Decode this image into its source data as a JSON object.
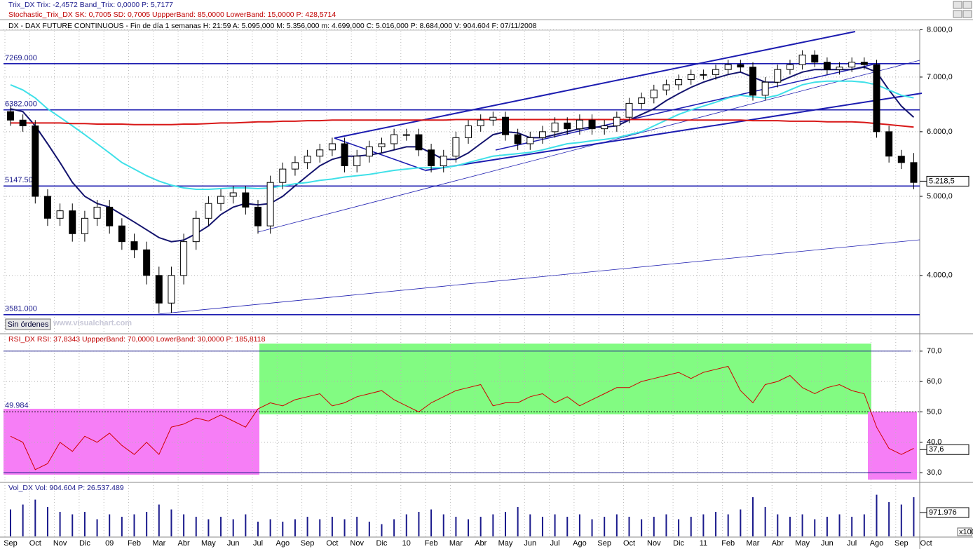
{
  "chart_data": [
    {
      "type": "candlestick",
      "title": "DX - DAX FUTURE CONTINUOUS - Fin de día 1 semanas H: 21:59 A: 5.095,000 M: 5.356,000 m: 4.699,000 C: 5.016,000 P: 8.684,000 V: 904.604 F: 07/11/2008",
      "indicators": [
        "Trix_DX Trix: -2,4572 Band_Trix: 0,0000 P: 5,7177",
        "Stochastic_Trix_DX SK: 0,7005 SD: 0,7005 UppperBand: 85,0000 LowerBand: 15,0000 P: 428,5714"
      ],
      "button": "Sin órdenes",
      "watermark": "www.visualchart.com",
      "log_scale": true,
      "grid": true,
      "ylim": [
        3400,
        7975
      ],
      "yticks": [
        {
          "value": 4000,
          "label": "4.000,0"
        },
        {
          "value": 5000,
          "label": "5.000,0"
        },
        {
          "value": 6000,
          "label": "6.000,0"
        },
        {
          "value": 7000,
          "label": "7.000,0"
        },
        {
          "value": 8000,
          "label": "8.000,0"
        }
      ],
      "open": [
        6350,
        6200,
        6100,
        5000,
        4700,
        4800,
        4500,
        4700,
        4850,
        4600,
        4400,
        4300,
        4000,
        3700,
        4000,
        4400,
        4700,
        4900,
        5000,
        5050,
        4850,
        4600,
        5200,
        5400,
        5500,
        5600,
        5700,
        5800,
        5450,
        5600,
        5750,
        5800,
        5950,
        5950,
        5700,
        5450,
        5600,
        5900,
        6100,
        6200,
        6250,
        5950,
        5800,
        5900,
        6000,
        6150,
        6050,
        6200,
        6050,
        6100,
        6250,
        6500,
        6600,
        6750,
        6850,
        6950,
        7050,
        7050,
        7150,
        7250,
        7200,
        6650,
        6900,
        7150,
        7250,
        7450,
        7300,
        7150,
        7200,
        7300,
        7250,
        6000,
        5600,
        5500
      ],
      "high": [
        6450,
        6300,
        6200,
        5100,
        4900,
        4900,
        4800,
        4950,
        4950,
        4700,
        4500,
        4400,
        4100,
        4100,
        4500,
        4800,
        5000,
        5100,
        5150,
        5150,
        4950,
        5300,
        5500,
        5600,
        5700,
        5800,
        5900,
        5900,
        5700,
        5850,
        5900,
        6050,
        6050,
        6050,
        5800,
        5700,
        6000,
        6200,
        6300,
        6350,
        6350,
        6050,
        6000,
        6100,
        6250,
        6250,
        6300,
        6300,
        6200,
        6350,
        6600,
        6700,
        6850,
        6950,
        7050,
        7150,
        7150,
        7250,
        7350,
        7350,
        7300,
        7000,
        7250,
        7350,
        7550,
        7550,
        7400,
        7300,
        7400,
        7400,
        7350,
        6100,
        5700,
        5650
      ],
      "low": [
        6100,
        6000,
        4900,
        4600,
        4600,
        4400,
        4400,
        4600,
        4500,
        4300,
        4200,
        3900,
        3600,
        3600,
        3900,
        4300,
        4600,
        4800,
        4900,
        4750,
        4500,
        4500,
        5100,
        5300,
        5400,
        5500,
        5600,
        5350,
        5350,
        5500,
        5650,
        5700,
        5850,
        5600,
        5350,
        5350,
        5500,
        5800,
        6000,
        6100,
        5850,
        5700,
        5700,
        5800,
        5900,
        5950,
        5950,
        5950,
        5950,
        6000,
        6150,
        6400,
        6500,
        6650,
        6750,
        6850,
        6950,
        6950,
        7050,
        7100,
        6550,
        6550,
        6800,
        7050,
        7150,
        7200,
        7050,
        7050,
        7100,
        7150,
        5900,
        5500,
        5400,
        5100
      ],
      "close": [
        6200,
        6100,
        5000,
        4700,
        4800,
        4500,
        4700,
        4850,
        4600,
        4400,
        4300,
        4000,
        3700,
        4000,
        4400,
        4700,
        4900,
        5000,
        5050,
        4850,
        4600,
        5200,
        5400,
        5500,
        5600,
        5700,
        5800,
        5450,
        5600,
        5750,
        5800,
        5950,
        5950,
        5700,
        5450,
        5600,
        5900,
        6100,
        6200,
        6250,
        5950,
        5800,
        5900,
        6000,
        6150,
        6050,
        6200,
        6050,
        6100,
        6250,
        6500,
        6600,
        6750,
        6850,
        6950,
        7050,
        7050,
        7150,
        7250,
        7200,
        6650,
        6900,
        7150,
        7250,
        7450,
        7300,
        7150,
        7200,
        7300,
        7250,
        6000,
        5600,
        5500,
        5200
      ],
      "series": [
        {
          "color": "#14146e",
          "values": [
            6400,
            6350,
            6100,
            5800,
            5500,
            5200,
            5000,
            4900,
            4850,
            4750,
            4650,
            4550,
            4450,
            4400,
            4420,
            4500,
            4600,
            4750,
            4850,
            4900,
            4880,
            4900,
            5000,
            5150,
            5300,
            5450,
            5550,
            5600,
            5600,
            5620,
            5650,
            5700,
            5750,
            5750,
            5650,
            5550,
            5550,
            5650,
            5800,
            5950,
            6000,
            5980,
            5900,
            5900,
            5950,
            6000,
            6050,
            6080,
            6080,
            6100,
            6200,
            6300,
            6400,
            6550,
            6680,
            6800,
            6900,
            6980,
            7050,
            7100,
            7000,
            6900,
            6900,
            7000,
            7100,
            7150,
            7150,
            7150,
            7150,
            7200,
            7100,
            6750,
            6450,
            6250
          ]
        },
        {
          "color": "#3fe0e8",
          "values": [
            6850,
            6750,
            6600,
            6400,
            6250,
            6100,
            5950,
            5800,
            5650,
            5500,
            5400,
            5300,
            5220,
            5160,
            5120,
            5100,
            5100,
            5110,
            5120,
            5120,
            5110,
            5120,
            5150,
            5180,
            5200,
            5230,
            5250,
            5280,
            5300,
            5320,
            5350,
            5380,
            5400,
            5420,
            5420,
            5420,
            5450,
            5500,
            5550,
            5600,
            5620,
            5640,
            5660,
            5700,
            5750,
            5800,
            5820,
            5850,
            5870,
            5900,
            5950,
            6000,
            6100,
            6200,
            6300,
            6380,
            6450,
            6520,
            6600,
            6650,
            6620,
            6600,
            6650,
            6750,
            6850,
            6900,
            6920,
            6920,
            6920,
            6900,
            6850,
            6750,
            6650,
            6600
          ]
        },
        {
          "color": "#d81818",
          "values": [
            6150,
            6150,
            6150,
            6150,
            6150,
            6140,
            6140,
            6130,
            6130,
            6130,
            6120,
            6120,
            6120,
            6120,
            6130,
            6130,
            6140,
            6150,
            6150,
            6160,
            6170,
            6170,
            6180,
            6180,
            6190,
            6190,
            6200,
            6200,
            6200,
            6200,
            6200,
            6200,
            6200,
            6200,
            6200,
            6200,
            6210,
            6210,
            6210,
            6210,
            6210,
            6210,
            6210,
            6210,
            6210,
            6210,
            6210,
            6210,
            6210,
            6210,
            6210,
            6210,
            6210,
            6210,
            6200,
            6200,
            6200,
            6200,
            6200,
            6200,
            6190,
            6190,
            6190,
            6180,
            6180,
            6180,
            6170,
            6170,
            6170,
            6160,
            6140,
            6120,
            6100,
            6080
          ]
        }
      ],
      "levels": [
        {
          "value": 7269,
          "label": "7269.000"
        },
        {
          "value": 6382,
          "label": "6382.000"
        },
        {
          "value": 5147.5,
          "label": "5147.500"
        },
        {
          "value": 3581,
          "label": "3581.000"
        }
      ],
      "last": {
        "value": 5218.5,
        "label": "5.218,5"
      }
    },
    {
      "type": "line",
      "title": "RSI_DX RSI: 37,8343 UppperBand: 70,0000 LowerBand: 30,0000 P: 185,8118",
      "color": "#d00000",
      "grid": true,
      "ylim": [
        27.5,
        74.8
      ],
      "yticks": [
        {
          "value": 30,
          "label": "30,0"
        },
        {
          "value": 40,
          "label": "40,0"
        },
        {
          "value": 50,
          "label": "50,0"
        },
        {
          "value": 60,
          "label": "60,0"
        },
        {
          "value": 70,
          "label": "70,0"
        }
      ],
      "upper_band": 70,
      "lower_band": 30,
      "mid_level": {
        "value": 49.984,
        "label": "49.984"
      },
      "values": [
        42,
        40,
        31,
        33,
        40,
        37,
        42,
        40,
        43,
        39,
        36,
        40,
        36,
        45,
        46,
        48,
        47,
        49,
        47,
        45,
        51,
        53,
        52,
        54,
        55,
        56,
        52,
        53,
        55,
        56,
        57,
        54,
        52,
        50,
        53,
        55,
        57,
        58,
        59,
        52,
        53,
        53,
        55,
        56,
        53,
        55,
        52,
        54,
        56,
        58,
        58,
        60,
        61,
        62,
        63,
        61,
        63,
        64,
        65,
        57,
        53,
        59,
        60,
        62,
        58,
        56,
        58,
        59,
        57,
        56,
        45,
        38,
        36,
        38
      ],
      "last": {
        "value": 37.6,
        "label": "37,6"
      }
    },
    {
      "type": "bar",
      "title": "Vol_DX Vol: 904.604 P: 26.537.489",
      "color": "#1a1a8c",
      "ylim": [
        0,
        1860
      ],
      "scale_note": "x100",
      "categories": [
        "Sep",
        null,
        "Oct",
        null,
        "Nov",
        null,
        "Dic",
        null,
        "09",
        null,
        "Feb",
        null,
        "Mar",
        null,
        "Abr",
        null,
        "May",
        null,
        "Jun",
        null,
        "Jul",
        null,
        "Ago",
        null,
        "Sep",
        null,
        "Oct",
        null,
        "Nov",
        null,
        "Dic",
        null,
        "10",
        null,
        "Feb",
        null,
        "Mar",
        null,
        "Abr",
        null,
        "May",
        null,
        "Jun",
        null,
        "Jul",
        null,
        "Ago",
        null,
        "Sep",
        null,
        "Oct",
        null,
        "Nov",
        null,
        "Dic",
        null,
        "11",
        null,
        "Feb",
        null,
        "Mar",
        null,
        "Abr",
        null,
        "May",
        null,
        "Jun",
        null,
        "Jul",
        null,
        "Ago",
        null,
        "Sep",
        null
      ],
      "next_category": "Oct",
      "values": [
        1100,
        1300,
        1500,
        1200,
        1000,
        900,
        1000,
        700,
        900,
        800,
        900,
        1000,
        1300,
        1100,
        900,
        800,
        700,
        800,
        700,
        900,
        600,
        700,
        600,
        700,
        800,
        700,
        800,
        700,
        800,
        600,
        500,
        700,
        900,
        1000,
        1100,
        900,
        800,
        700,
        800,
        900,
        1000,
        1200,
        900,
        800,
        900,
        800,
        900,
        700,
        800,
        900,
        800,
        700,
        800,
        900,
        700,
        800,
        900,
        1000,
        900,
        1100,
        1600,
        1200,
        900,
        800,
        900,
        700,
        800,
        900,
        800,
        900,
        1700,
        1400,
        1300,
        1600
      ],
      "last": {
        "value": 971.976,
        "label": "971.976"
      }
    }
  ]
}
